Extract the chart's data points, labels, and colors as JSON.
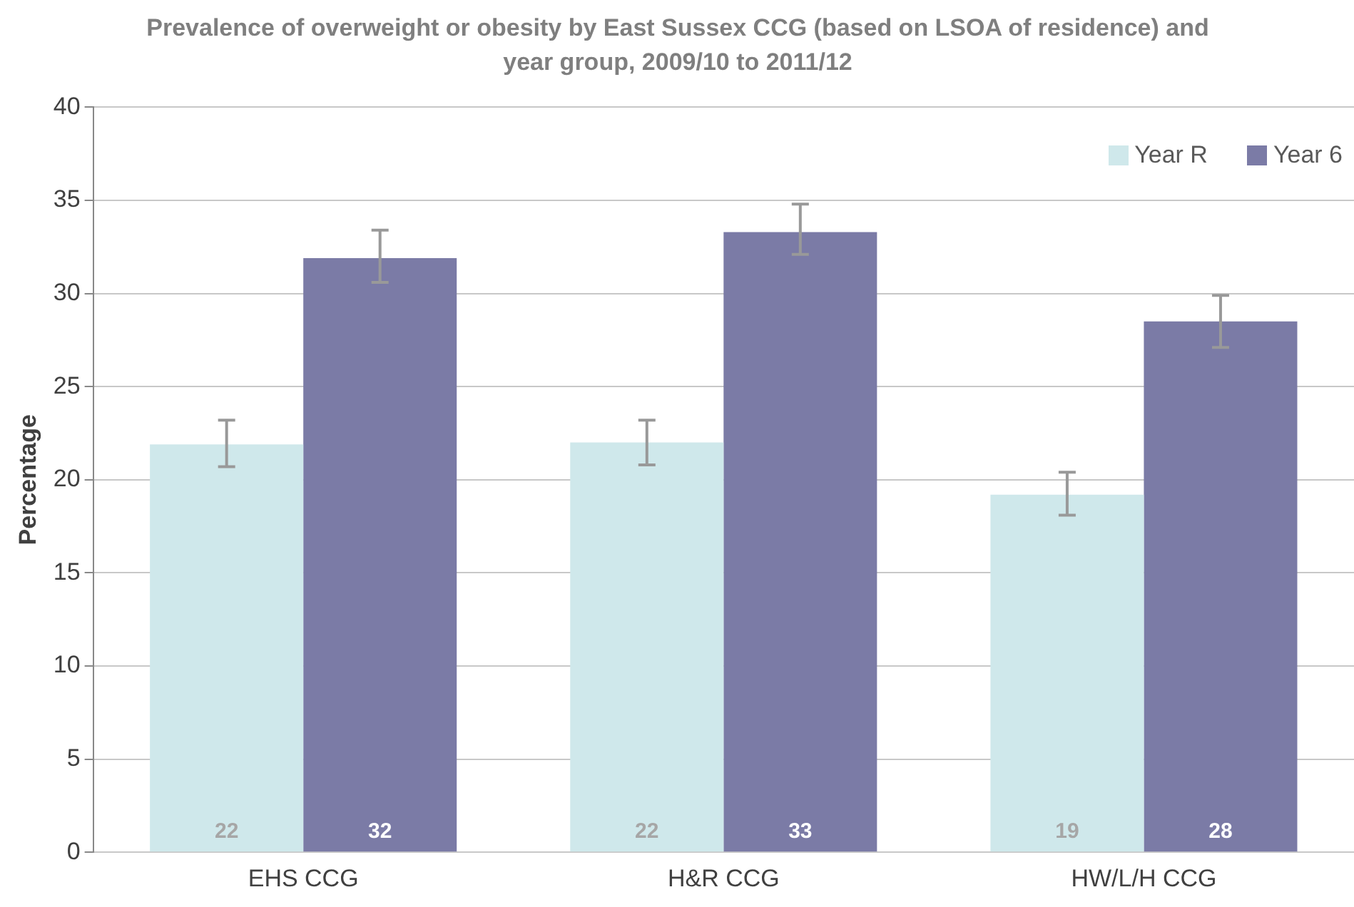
{
  "chart_data": {
    "type": "bar",
    "title": "Prevalence of overweight or obesity by East Sussex CCG (based on LSOA of residence) and year group, 2009/10 to 2011/12",
    "ylabel": "Percentage",
    "categories": [
      "EHS CCG",
      "H&R CCG",
      "HW/L/H CCG"
    ],
    "series": [
      {
        "name": "Year R",
        "color": "#cfe8eb",
        "values": [
          21.9,
          22.0,
          19.2
        ],
        "errors": [
          [
            20.7,
            23.2
          ],
          [
            20.8,
            23.2
          ],
          [
            18.1,
            20.4
          ]
        ],
        "value_labels": [
          "22",
          "22",
          "19"
        ]
      },
      {
        "name": "Year 6",
        "color": "#7b7ba6",
        "values": [
          31.9,
          33.3,
          28.5
        ],
        "errors": [
          [
            30.6,
            33.4
          ],
          [
            32.1,
            34.8
          ],
          [
            27.1,
            29.9
          ]
        ],
        "value_labels": [
          "32",
          "33",
          "28"
        ]
      }
    ],
    "ylim": [
      0,
      40
    ],
    "yticks": [
      0,
      5,
      10,
      15,
      20,
      25,
      30,
      35,
      40
    ],
    "grid": "y",
    "legend": "top right"
  }
}
